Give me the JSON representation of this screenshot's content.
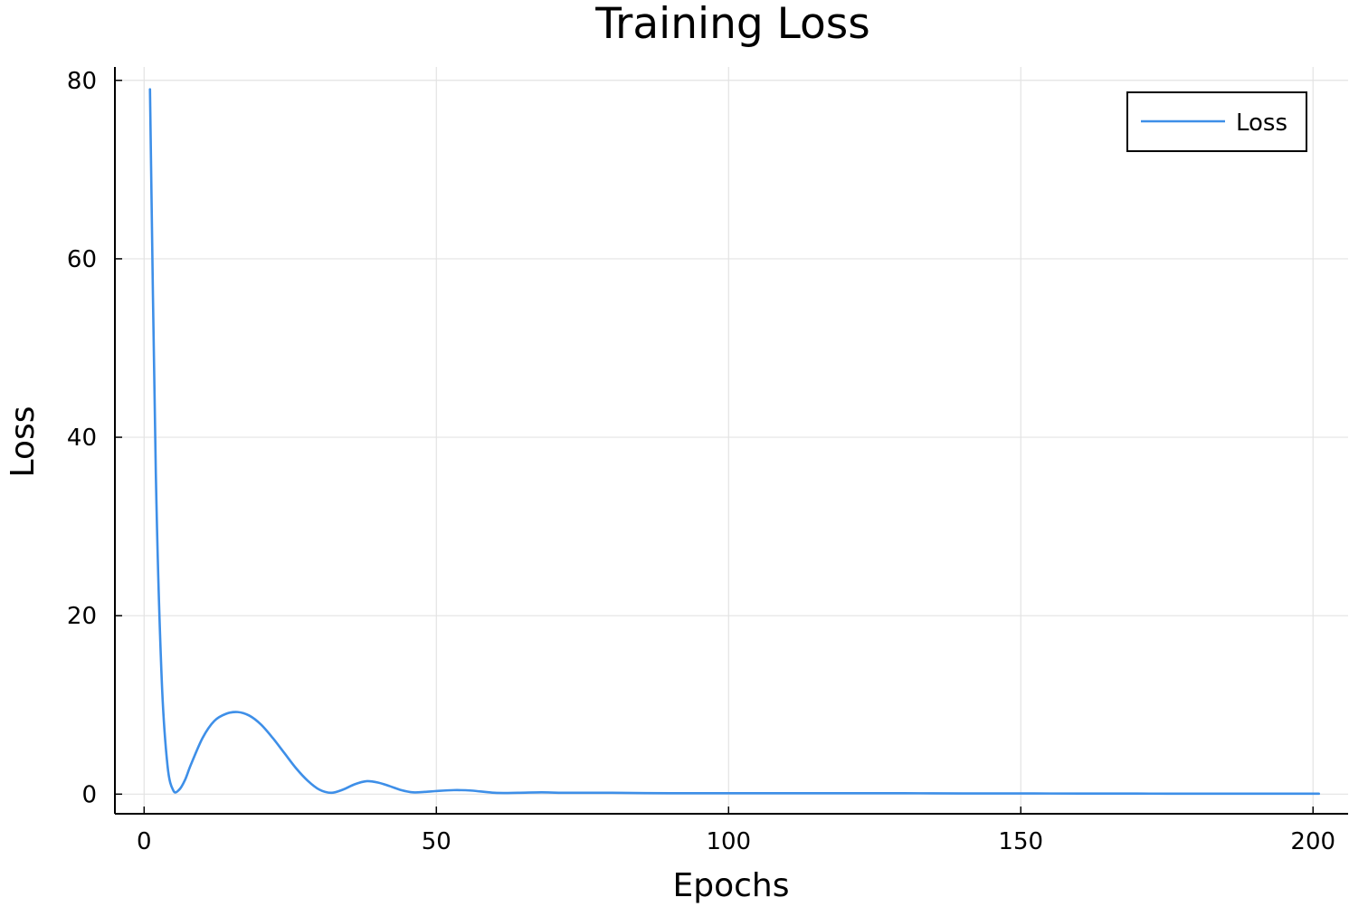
{
  "chart_data": {
    "type": "line",
    "title": "Training Loss",
    "xlabel": "Epochs",
    "ylabel": "Loss",
    "xlim": [
      -5,
      206
    ],
    "ylim": [
      -2.2,
      81.5
    ],
    "xticks": [
      0,
      50,
      100,
      150,
      200
    ],
    "yticks": [
      0,
      20,
      40,
      60,
      80
    ],
    "grid": true,
    "legend_position": "top-right",
    "series": [
      {
        "name": "Loss",
        "color": "#3e8fe8",
        "x": [
          1,
          2,
          3,
          4,
          5,
          6,
          7,
          8,
          10,
          12,
          14,
          16,
          18,
          20,
          22,
          24,
          26,
          28,
          30,
          32,
          34,
          36,
          38,
          40,
          42,
          44,
          46,
          48,
          50,
          53,
          56,
          60,
          64,
          68,
          72,
          80,
          90,
          100,
          110,
          120,
          130,
          140,
          150,
          160,
          170,
          180,
          190,
          201
        ],
        "y": [
          79.0,
          36.0,
          13.0,
          3.2,
          0.4,
          0.5,
          1.6,
          3.3,
          6.3,
          8.2,
          9.0,
          9.2,
          8.8,
          7.8,
          6.3,
          4.6,
          2.9,
          1.5,
          0.5,
          0.15,
          0.5,
          1.1,
          1.45,
          1.3,
          0.9,
          0.45,
          0.2,
          0.25,
          0.35,
          0.45,
          0.4,
          0.15,
          0.15,
          0.2,
          0.15,
          0.15,
          0.1,
          0.1,
          0.1,
          0.1,
          0.1,
          0.08,
          0.08,
          0.06,
          0.06,
          0.05,
          0.05,
          0.05
        ]
      }
    ]
  }
}
